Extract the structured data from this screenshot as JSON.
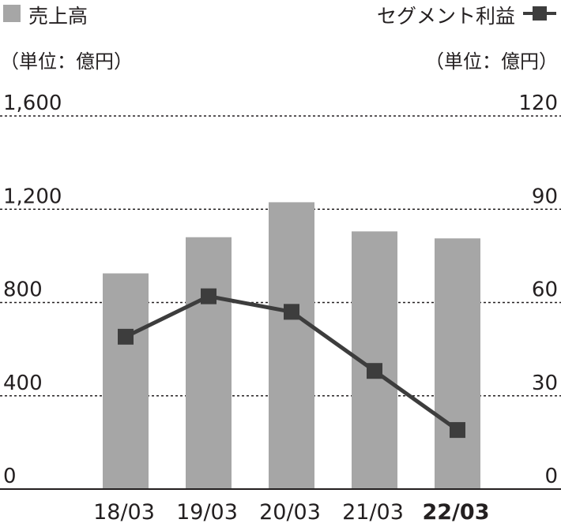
{
  "chart_data": {
    "type": "bar+line",
    "categories": [
      "18/03",
      "19/03",
      "20/03",
      "21/03",
      "22/03"
    ],
    "highlight_category": "22/03",
    "series": [
      {
        "name": "売上高",
        "type": "bar",
        "axis": "left",
        "color": "#a6a6a6",
        "values": [
          925,
          1080,
          1230,
          1105,
          1075
        ]
      },
      {
        "name": "セグメント利益",
        "type": "line",
        "axis": "right",
        "color": "#3d3d3d",
        "values": [
          49,
          62,
          57,
          38,
          19
        ]
      }
    ],
    "y_left": {
      "unit": "（単位：億円）",
      "ticks": [
        "0",
        "400",
        "800",
        "1,200",
        "1,600"
      ],
      "range": [
        0,
        1600
      ]
    },
    "y_right": {
      "unit": "（単位：億円）",
      "ticks": [
        "0",
        "30",
        "60",
        "90",
        "120"
      ],
      "range": [
        0,
        120
      ]
    },
    "grid": "dotted horizontal",
    "legend_position": "top"
  }
}
